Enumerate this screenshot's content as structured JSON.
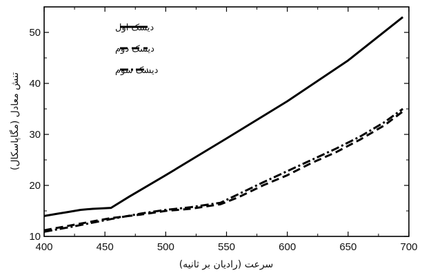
{
  "chart_data": {
    "type": "line",
    "xlabel": "سرعت (رادیان بر ثانیه)",
    "ylabel": "تنش معادل (مگاپاسکال)",
    "xlim": [
      400,
      700
    ],
    "ylim": [
      10,
      55
    ],
    "xticks": [
      400,
      450,
      500,
      550,
      600,
      650,
      700
    ],
    "yticks": [
      10,
      20,
      30,
      40,
      50
    ],
    "legend_position": "top-left",
    "grid": false,
    "series": [
      {
        "name": "دیسک اول",
        "style": "solid",
        "color": "#000000",
        "x": [
          400,
          410,
          420,
          430,
          440,
          455,
          470,
          500,
          550,
          600,
          650,
          695
        ],
        "y": [
          14.0,
          14.4,
          14.8,
          15.2,
          15.4,
          15.6,
          17.8,
          22.0,
          29.2,
          36.5,
          44.5,
          53.0
        ]
      },
      {
        "name": "دیسک دوم",
        "style": "dashed",
        "color": "#000000",
        "x": [
          400,
          425,
          455,
          480,
          500,
          520,
          545,
          560,
          580,
          600,
          620,
          640,
          660,
          680,
          695
        ],
        "y": [
          11.2,
          12.3,
          13.6,
          14.3,
          15.0,
          15.4,
          16.3,
          17.7,
          20.0,
          22.0,
          24.4,
          26.5,
          29.0,
          31.8,
          34.5
        ]
      },
      {
        "name": "دیسک سوم",
        "style": "dashdot",
        "color": "#000000",
        "x": [
          400,
          425,
          455,
          480,
          500,
          520,
          545,
          560,
          580,
          600,
          620,
          640,
          660,
          680,
          695
        ],
        "y": [
          10.9,
          12.0,
          13.4,
          14.5,
          15.2,
          15.7,
          16.6,
          18.3,
          20.6,
          22.8,
          25.0,
          27.2,
          29.6,
          32.4,
          35.0
        ]
      }
    ]
  }
}
